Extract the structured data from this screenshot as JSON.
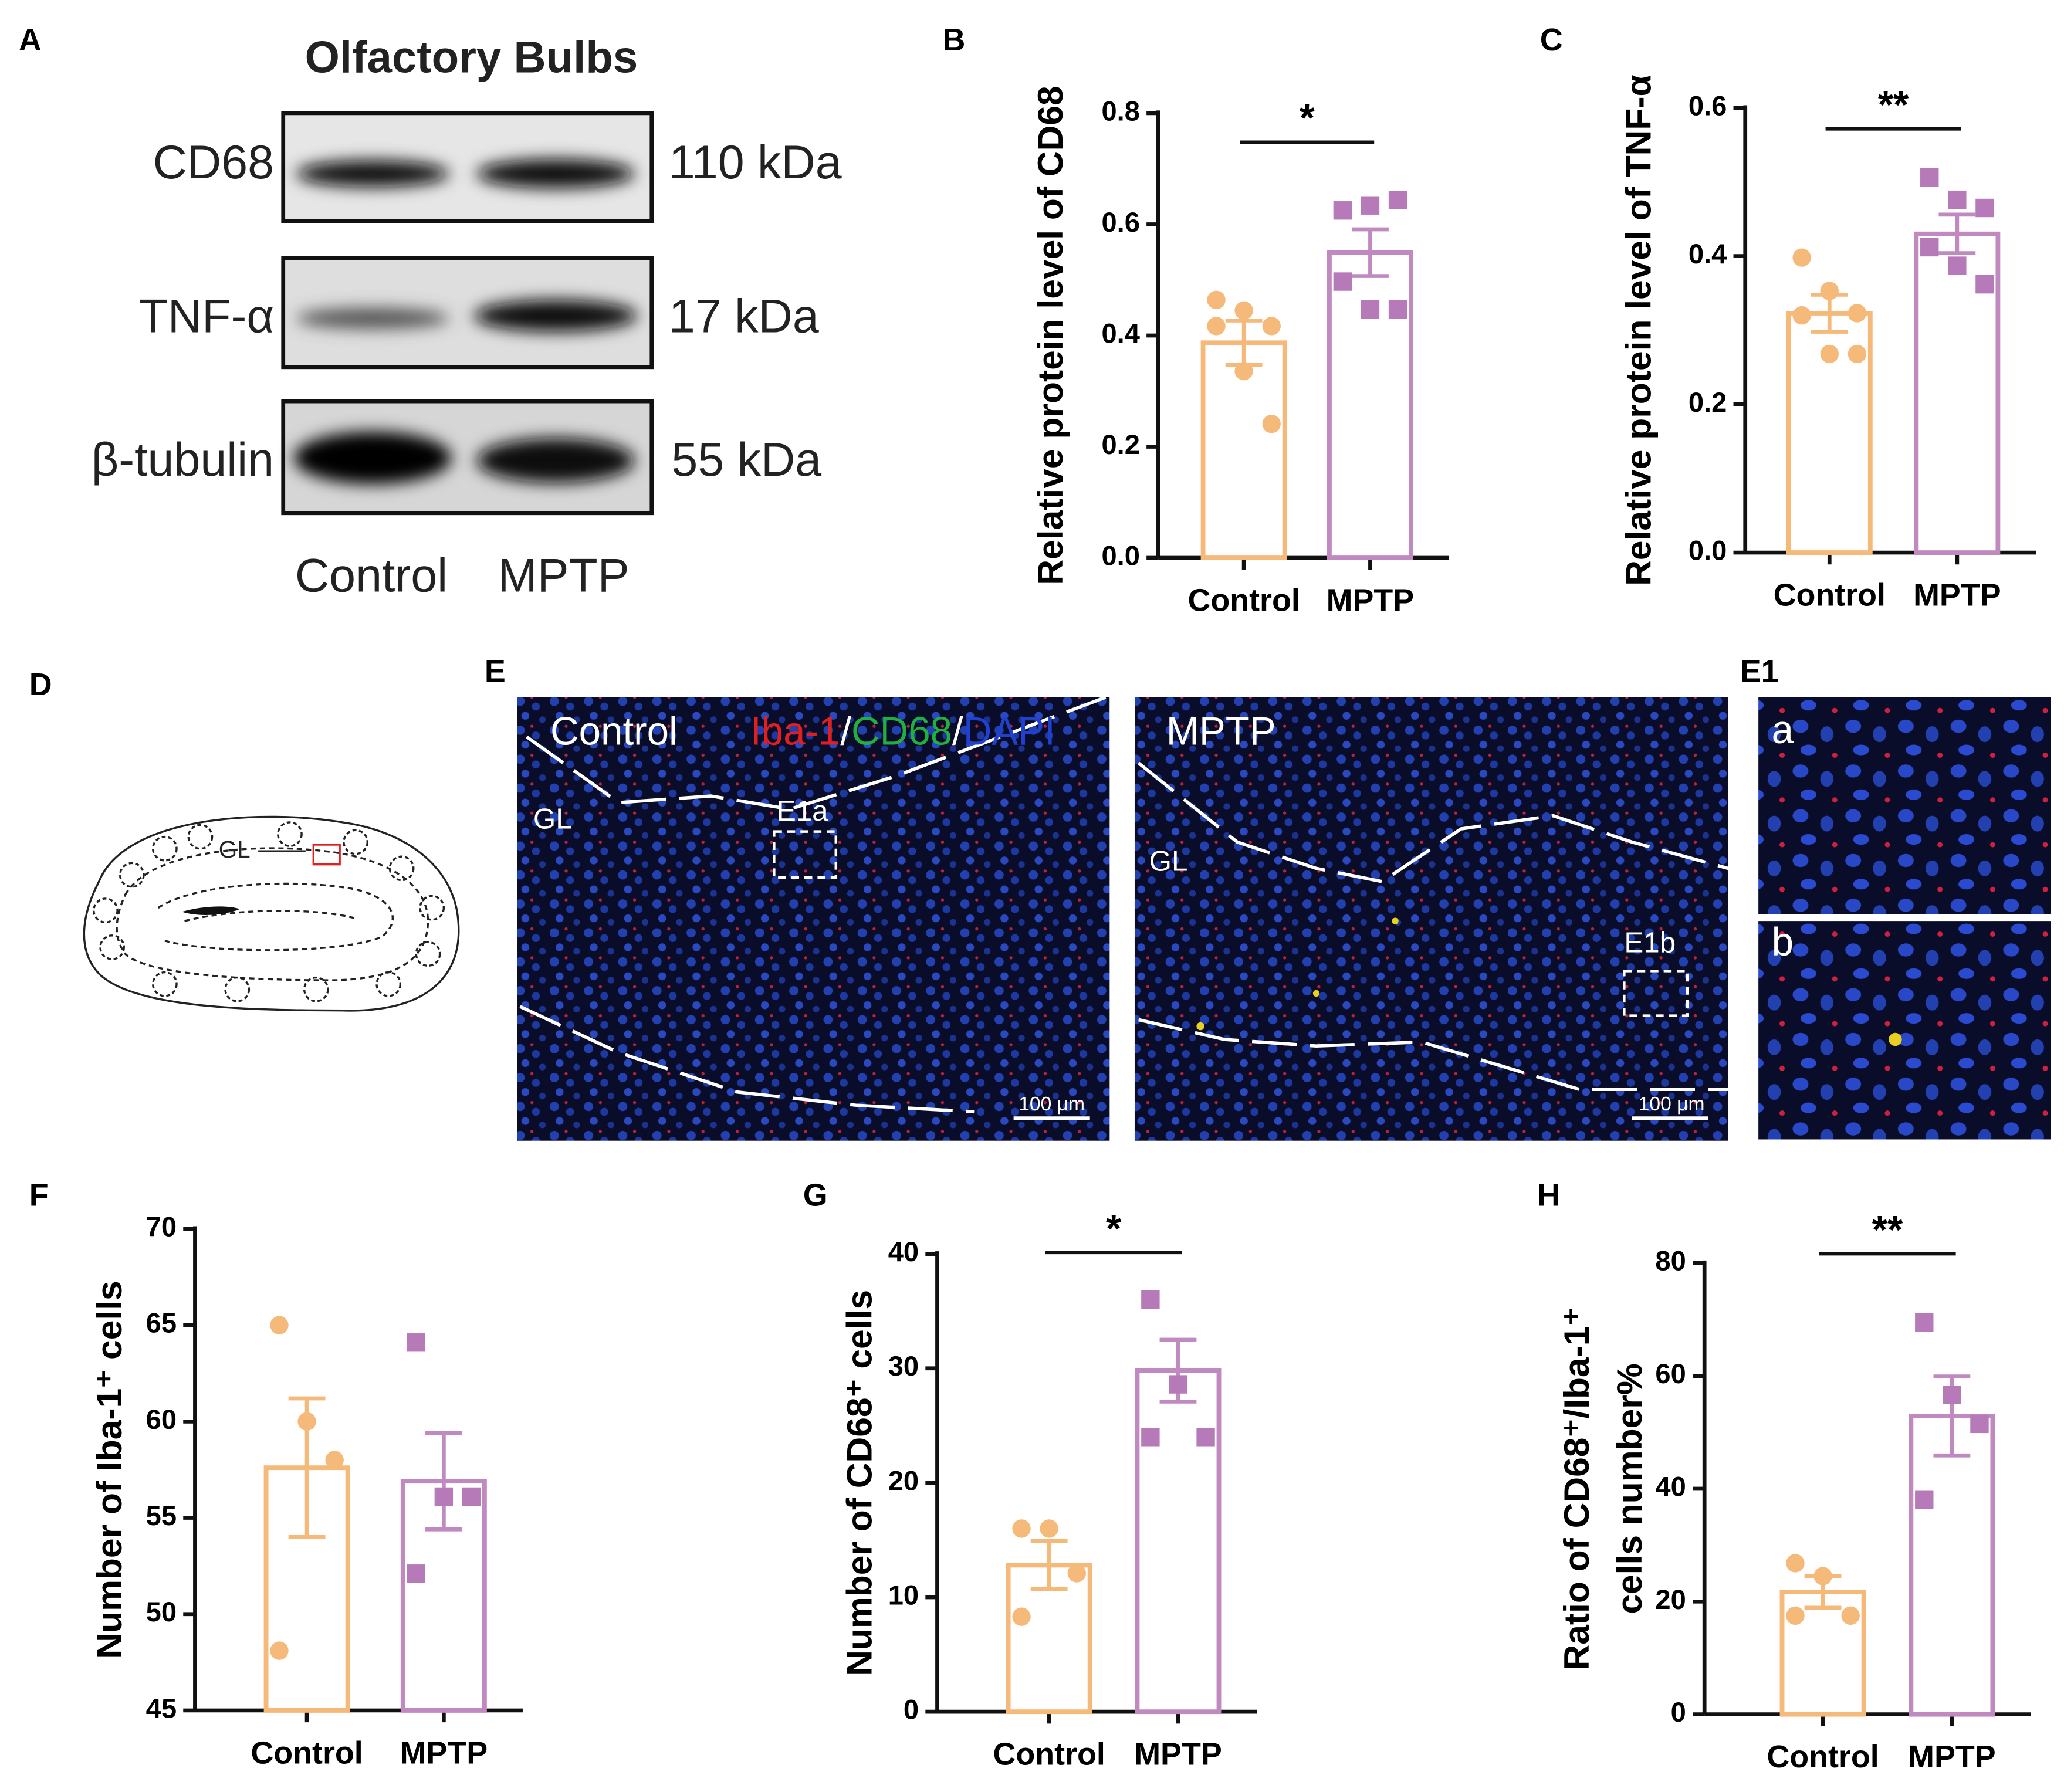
{
  "panel_labels": [
    "A",
    "B",
    "C",
    "D",
    "E",
    "E1",
    "F",
    "G",
    "H"
  ],
  "blot": {
    "title": "Olfactory Bulbs",
    "rows": [
      {
        "protein": "CD68",
        "size": "110 kDa"
      },
      {
        "protein": "TNF-α",
        "size": "17 kDa"
      },
      {
        "protein": "β-tubulin",
        "size": "55 kDa"
      }
    ],
    "lanes": [
      "Control",
      "MPTP"
    ]
  },
  "diagram": {
    "label": "GL"
  },
  "micrographs": {
    "control": {
      "label": "Control",
      "stain": [
        "Iba-1",
        "/",
        "CD68",
        "/",
        "DAPI"
      ],
      "region": "GL",
      "inset": "E1a",
      "scale": "100 μm"
    },
    "mptp": {
      "label": "MPTP",
      "region": "GL",
      "inset": "E1b",
      "scale": "100 μm"
    },
    "insets": [
      "a",
      "b"
    ]
  },
  "chart_data": [
    {
      "type": "bar",
      "ylabel": [
        "Relative protein level of CD68"
      ],
      "categories": [
        "Control",
        "MPTP"
      ],
      "colors": [
        "#f5b97a",
        "#c08ac0"
      ],
      "markers": [
        "circle",
        "square"
      ],
      "values": [
        0.387,
        0.549
      ],
      "errors": [
        0.04,
        0.042
      ],
      "points": [
        [
          0.464,
          0.445,
          0.417,
          0.417,
          0.336,
          0.241
        ],
        [
          0.625,
          0.634,
          0.644,
          0.497,
          0.447,
          0.447
        ]
      ],
      "ylim": [
        0,
        0.8
      ],
      "yticks": [
        {
          "value": 0,
          "label": "0.0"
        },
        0.2,
        0.4,
        0.6,
        0.8
      ],
      "significance": "*"
    },
    {
      "type": "bar",
      "ylabel": [
        "Relative protein level of TNF-α"
      ],
      "categories": [
        "Control",
        "MPTP"
      ],
      "colors": [
        "#f5b97a",
        "#c08ac0"
      ],
      "markers": [
        "circle",
        "square"
      ],
      "values": [
        0.323,
        0.43
      ],
      "errors": [
        0.025,
        0.026
      ],
      "points": [
        [
          0.398,
          0.353,
          0.323,
          0.32,
          0.268,
          0.268
        ],
        [
          0.506,
          0.476,
          0.465,
          0.412,
          0.387,
          0.362
        ]
      ],
      "ylim": [
        0,
        0.6
      ],
      "yticks": [
        {
          "value": 0,
          "label": "0.0"
        },
        0.2,
        0.4,
        0.6
      ],
      "significance": "**"
    },
    {
      "type": "bar",
      "ylabel": [
        "Number of Iba-1⁺ cells"
      ],
      "categories": [
        "Control",
        "MPTP"
      ],
      "colors": [
        "#f5b97a",
        "#c08ac0"
      ],
      "markers": [
        "circle",
        "square"
      ],
      "values": [
        57.6,
        56.9
      ],
      "errors": [
        3.6,
        2.5
      ],
      "points": [
        [
          65,
          60,
          58,
          48.1
        ],
        [
          64.1,
          56.1,
          56.1,
          52.1
        ]
      ],
      "ylim": [
        45,
        70
      ],
      "yticks": [
        45,
        50,
        55,
        60,
        65,
        70
      ]
    },
    {
      "type": "bar",
      "ylabel": [
        "Number of CD68⁺ cells"
      ],
      "categories": [
        "Control",
        "MPTP"
      ],
      "colors": [
        "#f5b97a",
        "#c08ac0"
      ],
      "markers": [
        "circle",
        "square"
      ],
      "values": [
        12.8,
        29.8
      ],
      "errors": [
        2.1,
        2.7
      ],
      "points": [
        [
          16,
          16,
          12.1,
          8.3
        ],
        [
          36,
          28.6,
          24,
          24
        ]
      ],
      "ylim": [
        0,
        40
      ],
      "yticks": [
        0,
        10,
        20,
        30,
        40
      ],
      "significance": "*"
    },
    {
      "type": "bar",
      "ylabel": [
        "Ratio of CD68⁺/Iba-1⁺",
        "cells number%"
      ],
      "categories": [
        "Control",
        "MPTP"
      ],
      "colors": [
        "#f5b97a",
        "#c08ac0"
      ],
      "markers": [
        "circle",
        "square"
      ],
      "values": [
        21.7,
        52.9
      ],
      "errors": [
        2.8,
        7
      ],
      "points": [
        [
          26.8,
          24.5,
          17.5,
          17.5
        ],
        [
          69.5,
          56.6,
          51.5,
          38
        ]
      ],
      "ylim": [
        0,
        80
      ],
      "yticks": [
        0,
        20,
        40,
        60,
        80
      ],
      "significance": "**"
    }
  ]
}
